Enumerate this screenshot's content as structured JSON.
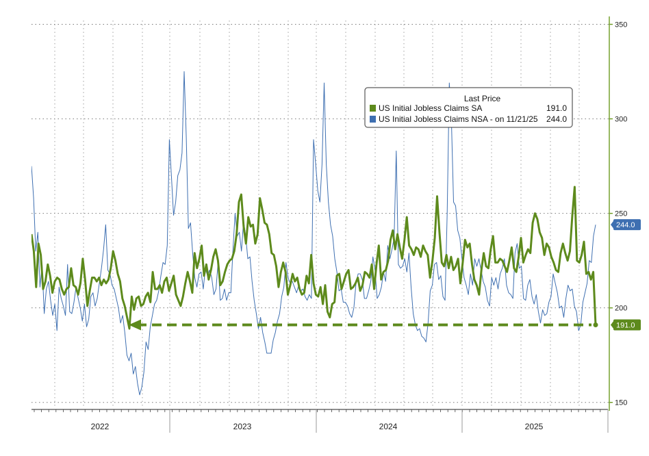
{
  "chart_data": {
    "type": "line",
    "y_axis": {
      "side": "right",
      "ticks": [
        150,
        200,
        250,
        300,
        350
      ],
      "range": [
        147,
        352
      ],
      "grid": "dotted"
    },
    "x_axis": {
      "labels": [
        "2022",
        "2023",
        "2024",
        "2025"
      ]
    },
    "legend": {
      "title": "Last Price",
      "placement": "upper-middle",
      "entries": [
        {
          "label": "US Initial Jobless Claims SA",
          "value": "191.0",
          "color": "#5d8a1c"
        },
        {
          "label": "US Initial Jobless Claims NSA -  on 11/21/25",
          "value": "244.0",
          "color": "#3e6fb1"
        }
      ]
    },
    "last_value_badges": [
      {
        "text": "244.0",
        "value": 244,
        "color": "#3e6fb1"
      },
      {
        "text": "191.0",
        "value": 191,
        "color": "#5d8a1c"
      }
    ],
    "reference_line": {
      "value": 191,
      "style": "dashed-arrow",
      "color": "#5d8a1c"
    },
    "series": [
      {
        "name": "US Initial Jobless Claims SA",
        "color": "#5d8a1c",
        "values": [
          239,
          230,
          211,
          234,
          228,
          210,
          214,
          223,
          217,
          208,
          214,
          216,
          215,
          210,
          207,
          210,
          211,
          221,
          212,
          211,
          207,
          213,
          226,
          215,
          201,
          209,
          216,
          216,
          214,
          216,
          212,
          215,
          213,
          215,
          221,
          230,
          225,
          218,
          214,
          205,
          201,
          195,
          189,
          206,
          199,
          205,
          206,
          201,
          202,
          206,
          208,
          203,
          219,
          210,
          210,
          212,
          208,
          214,
          216,
          209,
          213,
          217,
          207,
          204,
          201,
          206,
          213,
          219,
          214,
          208,
          229,
          221,
          226,
          233,
          217,
          223,
          215,
          220,
          227,
          231,
          225,
          212,
          214,
          219,
          223,
          225,
          226,
          230,
          239,
          256,
          260,
          243,
          234,
          248,
          243,
          244,
          234,
          239,
          258,
          252,
          245,
          244,
          239,
          229,
          228,
          222,
          211,
          219,
          224,
          219,
          207,
          212,
          218,
          214,
          216,
          210,
          207,
          208,
          217,
          213,
          228,
          213,
          207,
          206,
          211,
          202,
          212,
          198,
          195,
          202,
          203,
          217,
          218,
          210,
          214,
          218,
          220,
          210,
          211,
          213,
          216,
          209,
          212,
          219,
          218,
          216,
          223,
          210,
          223,
          233,
          215,
          219,
          220,
          225,
          236,
          241,
          231,
          239,
          232,
          226,
          236,
          248,
          233,
          231,
          228,
          232,
          231,
          227,
          233,
          230,
          228,
          216,
          225,
          237,
          259,
          240,
          224,
          222,
          228,
          221,
          227,
          220,
          222,
          226,
          213,
          224,
          236,
          232,
          234,
          223,
          215,
          212,
          207,
          220,
          229,
          222,
          221,
          231,
          238,
          224,
          224,
          226,
          225,
          222,
          219,
          225,
          232,
          221,
          219,
          227,
          237,
          224,
          228,
          231,
          229,
          245,
          250,
          247,
          240,
          237,
          228,
          234,
          232,
          227,
          224,
          220,
          219,
          229,
          234,
          229,
          225,
          230,
          249,
          264,
          225,
          224,
          228,
          235,
          218,
          219,
          215,
          219,
          191
        ]
      },
      {
        "name": "US Initial Jobless Claims NSA -  on 11/21/25",
        "color": "#3e6fb1",
        "values": [
          275,
          258,
          230,
          240,
          211,
          223,
          197,
          210,
          214,
          204,
          196,
          202,
          188,
          211,
          205,
          201,
          196,
          223,
          198,
          197,
          203,
          211,
          205,
          200,
          193,
          202,
          190,
          194,
          206,
          208,
          201,
          205,
          213,
          221,
          231,
          244,
          220,
          218,
          212,
          210,
          205,
          200,
          192,
          196,
          187,
          175,
          172,
          176,
          165,
          169,
          160,
          154,
          158,
          166,
          182,
          178,
          190,
          196,
          202,
          204,
          209,
          217,
          224,
          223,
          233,
          289,
          269,
          249,
          256,
          270,
          273,
          282,
          325,
          290,
          242,
          245,
          229,
          216,
          211,
          218,
          219,
          210,
          221,
          217,
          220,
          216,
          207,
          210,
          224,
          204,
          205,
          210,
          204,
          208,
          208,
          231,
          250,
          238,
          240,
          230,
          246,
          238,
          226,
          227,
          214,
          204,
          197,
          189,
          195,
          187,
          182,
          176,
          176,
          176,
          183,
          187,
          193,
          197,
          206,
          211,
          224,
          216,
          213,
          214,
          211,
          208,
          212,
          209,
          210,
          206,
          204,
          207,
          205,
          289,
          276,
          262,
          256,
          276,
          319,
          276,
          256,
          244,
          238,
          226,
          219,
          209,
          210,
          203,
          203,
          201,
          197,
          195,
          200,
          213,
          218,
          218,
          215,
          205,
          205,
          209,
          214,
          227,
          220,
          205,
          207,
          211,
          219,
          214,
          233,
          226,
          231,
          237,
          283,
          223,
          221,
          222,
          226,
          219,
          229,
          211,
          197,
          191,
          188,
          189,
          185,
          184,
          182,
          192,
          209,
          212,
          223,
          224,
          215,
          217,
          206,
          204,
          250,
          319,
          299,
          256,
          254,
          241,
          237,
          226,
          216,
          212,
          207,
          218,
          212,
          226,
          222,
          226,
          220,
          214,
          211,
          204,
          201,
          216,
          212,
          216,
          210,
          218,
          221,
          226,
          212,
          208,
          207,
          205,
          229,
          234,
          221,
          222,
          205,
          204,
          212,
          215,
          206,
          202,
          207,
          198,
          192,
          199,
          196,
          197,
          203,
          206,
          218,
          213,
          208,
          200,
          201,
          195,
          205,
          212,
          209,
          210,
          201,
          198,
          188,
          191,
          203,
          208,
          213,
          225,
          224,
          238,
          244
        ]
      }
    ]
  }
}
